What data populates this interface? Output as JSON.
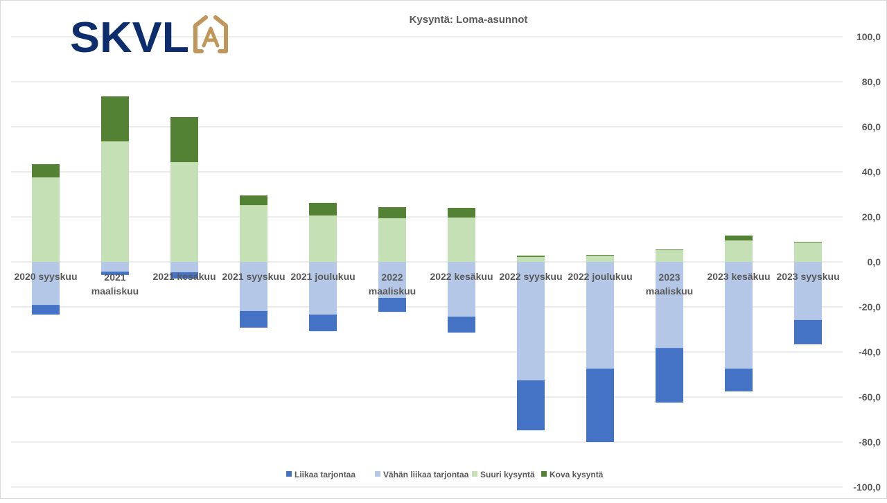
{
  "logo": {
    "text": "SKVL",
    "emblem_letter": "A",
    "text_color": "#0d2d6c",
    "emblem_color": "#c0965a"
  },
  "chart_data": {
    "type": "bar",
    "stacked": true,
    "title": "Kysyntä: Loma-asunnot",
    "xlabel": "",
    "ylabel": "",
    "ylim": [
      -100,
      100
    ],
    "ytick_step": 20,
    "yticks": [
      "100,0",
      "80,0",
      "60,0",
      "40,0",
      "20,0",
      "0,0",
      "-20,0",
      "-40,0",
      "-60,0",
      "-80,0",
      "-100,0"
    ],
    "grid": true,
    "legend_position": "bottom",
    "categories": [
      [
        "2020 syyskuu"
      ],
      [
        "2021",
        "maaliskuu"
      ],
      [
        "2021 kesäkuu"
      ],
      [
        "2021 syyskuu"
      ],
      [
        "2021 joulukuu"
      ],
      [
        "2022",
        "maaliskuu"
      ],
      [
        "2022 kesäkuu"
      ],
      [
        "2022 syyskuu"
      ],
      [
        "2022 joulukuu"
      ],
      [
        "2023",
        "maaliskuu"
      ],
      [
        "2023 kesäkuu"
      ],
      [
        "2023 syyskuu"
      ]
    ],
    "series": [
      {
        "name": "Liikaa tarjontaa",
        "color": "#4472c4",
        "values": [
          -4.3,
          -1.5,
          -2.8,
          -7.4,
          -7.4,
          -6.2,
          -7.1,
          -22.2,
          -32.6,
          -24.3,
          -10.1,
          -10.8
        ]
      },
      {
        "name": "Vähän liikaa tarjontaa",
        "color": "#b4c7e7",
        "values": [
          -19.1,
          -4.3,
          -4.6,
          -21.8,
          -23.4,
          -16.0,
          -24.3,
          -52.6,
          -47.4,
          -38.2,
          -47.4,
          -25.8
        ]
      },
      {
        "name": "Suuri kysyntä",
        "color": "#c5e0b4",
        "values": [
          37.5,
          53.5,
          44.3,
          25.2,
          20.6,
          19.4,
          19.7,
          2.2,
          2.8,
          5.2,
          9.5,
          8.6
        ]
      },
      {
        "name": "Kova kysyntä",
        "color": "#548235",
        "values": [
          5.9,
          20.0,
          20.0,
          4.3,
          5.6,
          4.9,
          4.3,
          0.6,
          0.3,
          0.3,
          2.2,
          0.3
        ]
      }
    ]
  }
}
